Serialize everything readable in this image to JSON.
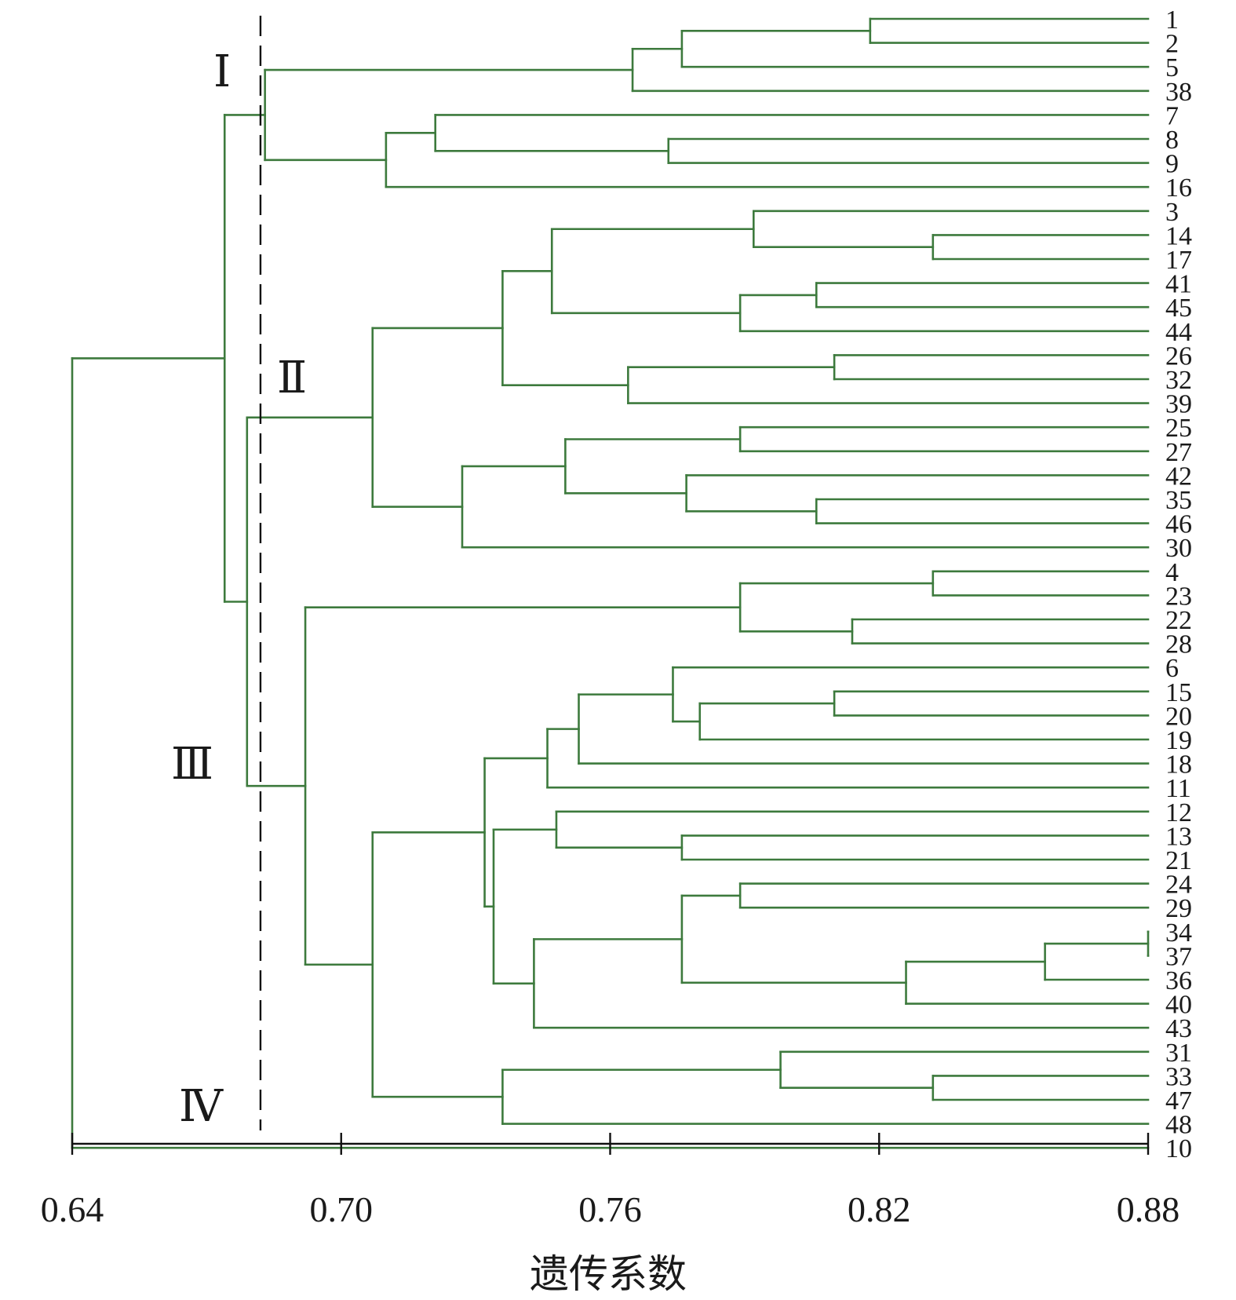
{
  "chart_data": {
    "type": "dendrogram",
    "xlabel": "遗传系数",
    "xlim": [
      0.64,
      0.88
    ],
    "x_ticks": [
      "0.64",
      "0.70",
      "0.76",
      "0.82",
      "0.88"
    ],
    "x_tick_values": [
      0.64,
      0.7,
      0.76,
      0.82,
      0.88
    ],
    "cut_value": 0.682,
    "leaves": [
      "1",
      "2",
      "5",
      "38",
      "7",
      "8",
      "9",
      "16",
      "3",
      "14",
      "17",
      "41",
      "45",
      "44",
      "26",
      "32",
      "39",
      "25",
      "27",
      "42",
      "35",
      "46",
      "30",
      "4",
      "23",
      "22",
      "28",
      "6",
      "15",
      "20",
      "19",
      "18",
      "11",
      "12",
      "13",
      "21",
      "24",
      "29",
      "34",
      "37",
      "36",
      "40",
      "43",
      "31",
      "33",
      "47",
      "48",
      "10"
    ],
    "clusters": [
      {
        "label": "Ⅰ"
      },
      {
        "label": "Ⅱ"
      },
      {
        "label": "Ⅲ"
      },
      {
        "label": "Ⅳ"
      }
    ],
    "tree": {
      "h": 0.64,
      "c": [
        {
          "h": 0.674,
          "c": [
            {
              "h": 0.683,
              "c": [
                {
                  "h": 0.765,
                  "c": [
                    {
                      "h": 0.776,
                      "c": [
                        {
                          "h": 0.818,
                          "c": [
                            "1",
                            "2"
                          ]
                        },
                        "5"
                      ]
                    },
                    "38"
                  ]
                },
                {
                  "h": 0.71,
                  "c": [
                    {
                      "h": 0.721,
                      "c": [
                        "7",
                        {
                          "h": 0.773,
                          "c": [
                            "8",
                            "9"
                          ]
                        }
                      ]
                    },
                    "16"
                  ]
                }
              ]
            },
            {
              "h": 0.679,
              "c": [
                {
                  "h": 0.707,
                  "c": [
                    {
                      "h": 0.736,
                      "c": [
                        {
                          "h": 0.747,
                          "c": [
                            {
                              "h": 0.792,
                              "c": [
                                "3",
                                {
                                  "h": 0.832,
                                  "c": [
                                    "14",
                                    "17"
                                  ]
                                }
                              ]
                            },
                            {
                              "h": 0.789,
                              "c": [
                                {
                                  "h": 0.806,
                                  "c": [
                                    "41",
                                    "45"
                                  ]
                                },
                                "44"
                              ]
                            }
                          ]
                        },
                        {
                          "h": 0.764,
                          "c": [
                            {
                              "h": 0.81,
                              "c": [
                                "26",
                                "32"
                              ]
                            },
                            "39"
                          ]
                        }
                      ]
                    },
                    {
                      "h": 0.727,
                      "c": [
                        {
                          "h": 0.75,
                          "c": [
                            {
                              "h": 0.789,
                              "c": [
                                "25",
                                "27"
                              ]
                            },
                            {
                              "h": 0.777,
                              "c": [
                                "42",
                                {
                                  "h": 0.806,
                                  "c": [
                                    "35",
                                    "46"
                                  ]
                                }
                              ]
                            }
                          ]
                        },
                        "30"
                      ]
                    }
                  ]
                },
                {
                  "h": 0.692,
                  "c": [
                    {
                      "h": 0.789,
                      "c": [
                        {
                          "h": 0.832,
                          "c": [
                            "4",
                            "23"
                          ]
                        },
                        {
                          "h": 0.814,
                          "c": [
                            "22",
                            "28"
                          ]
                        }
                      ]
                    },
                    {
                      "h": 0.707,
                      "c": [
                        {
                          "h": 0.732,
                          "c": [
                            {
                              "h": 0.746,
                              "c": [
                                {
                                  "h": 0.753,
                                  "c": [
                                    {
                                      "h": 0.774,
                                      "c": [
                                        "6",
                                        {
                                          "h": 0.78,
                                          "c": [
                                            {
                                              "h": 0.81,
                                              "c": [
                                                "15",
                                                "20"
                                              ]
                                            },
                                            "19"
                                          ]
                                        }
                                      ]
                                    },
                                    "18"
                                  ]
                                },
                                "11"
                              ]
                            },
                            {
                              "h": 0.734,
                              "c": [
                                {
                                  "h": 0.748,
                                  "c": [
                                    "12",
                                    {
                                      "h": 0.776,
                                      "c": [
                                        "13",
                                        "21"
                                      ]
                                    }
                                  ]
                                },
                                {
                                  "h": 0.743,
                                  "c": [
                                    {
                                      "h": 0.776,
                                      "c": [
                                        {
                                          "h": 0.789,
                                          "c": [
                                            "24",
                                            "29"
                                          ]
                                        },
                                        {
                                          "h": 0.826,
                                          "c": [
                                            {
                                              "h": 0.857,
                                              "c": [
                                                {
                                                  "h": 0.88,
                                                  "c": [
                                                    "34",
                                                    "37"
                                                  ]
                                                },
                                                "36"
                                              ]
                                            },
                                            "40"
                                          ]
                                        }
                                      ]
                                    },
                                    "43"
                                  ]
                                }
                              ]
                            }
                          ]
                        },
                        {
                          "h": 0.736,
                          "c": [
                            {
                              "h": 0.798,
                              "c": [
                                "31",
                                {
                                  "h": 0.832,
                                  "c": [
                                    "33",
                                    "47"
                                  ]
                                }
                              ]
                            },
                            "48"
                          ]
                        }
                      ]
                    }
                  ]
                }
              ]
            }
          ]
        },
        "10"
      ]
    }
  }
}
